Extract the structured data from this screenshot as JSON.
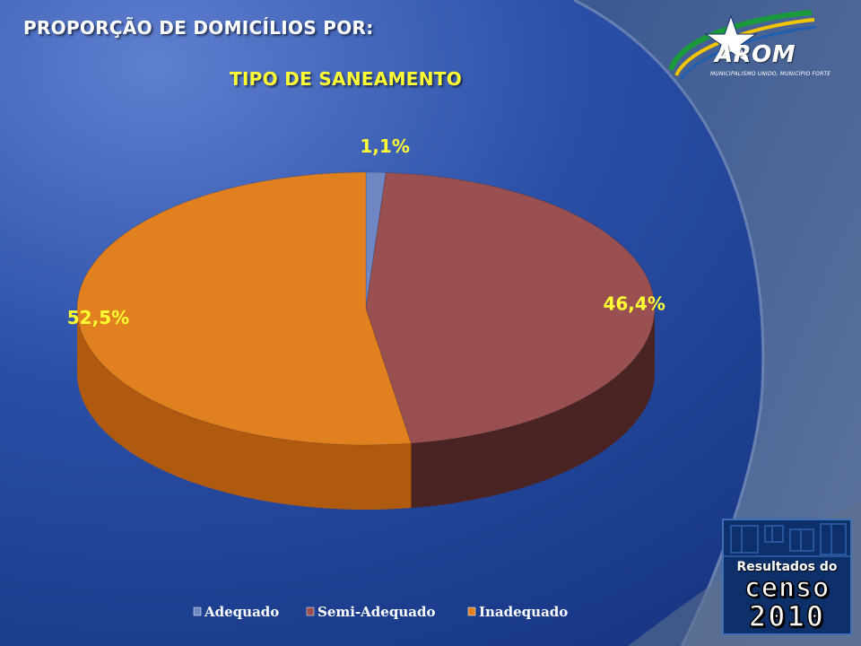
{
  "title": {
    "line1": "PROPORÇÃO DE DOMICÍLIOS POR:",
    "line2": "TIPO DE SANEAMENTO"
  },
  "logos": {
    "arom_name": "AROM",
    "arom_tagline": "MUNICIPALISMO UNIDO, MUNICÍPIO FORTE",
    "censo_top": "Resultados do",
    "censo_word": "censo",
    "censo_year": "2010"
  },
  "colors": {
    "background": "#1d3f8f",
    "title_primary": "#ffffff",
    "title_accent": "#ffff33",
    "adequado": "#6f88c4",
    "semi_adequado": "#9a5050",
    "inadequado": "#e0801f"
  },
  "chart_data": {
    "type": "pie",
    "style": "3d",
    "categories": [
      "Adequado",
      "Semi-Adequado",
      "Inadequado"
    ],
    "values": [
      1.1,
      46.4,
      52.5
    ],
    "labels": [
      "1,1%",
      "46,4%",
      "52,5%"
    ],
    "legend_position": "bottom",
    "title": "TIPO DE SANEAMENTO"
  }
}
